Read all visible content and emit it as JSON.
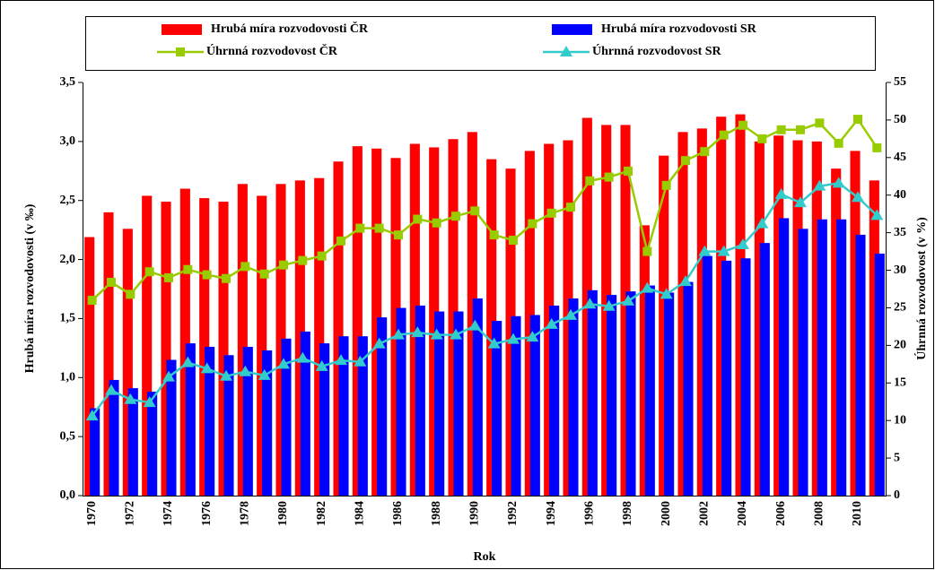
{
  "chart_data": {
    "type": "bar",
    "x_label": "Rok",
    "y_label": "Hrubá míra rozvodovosti (v ‰)",
    "y2_label": "Úhrnná rozvodovost (v %)",
    "categories": [
      "1970",
      null,
      "1972",
      null,
      "1974",
      null,
      "1976",
      null,
      "1978",
      null,
      "1980",
      null,
      "1982",
      null,
      "1984",
      null,
      "1986",
      null,
      "1988",
      null,
      "1990",
      null,
      "1992",
      null,
      "1994",
      null,
      "1996",
      null,
      "1998",
      null,
      "2000",
      null,
      "2002",
      null,
      "2004",
      null,
      "2006",
      null,
      "2008",
      null,
      "2010",
      null
    ],
    "ylim": [
      0,
      3.5
    ],
    "yticks": [
      {
        "value": 0,
        "label": "0,0"
      },
      {
        "value": 0.5,
        "label": "0,5"
      },
      {
        "value": 1,
        "label": "1,0"
      },
      {
        "value": 1.5,
        "label": "1,5"
      },
      {
        "value": 2,
        "label": "2,0"
      },
      {
        "value": 2.5,
        "label": "2,5"
      },
      {
        "value": 3,
        "label": "3,0"
      },
      {
        "value": 3.5,
        "label": "3,5"
      }
    ],
    "y2lim": [
      0,
      55
    ],
    "y2ticks": [
      0,
      5,
      10,
      15,
      20,
      25,
      30,
      35,
      40,
      45,
      50,
      55
    ],
    "grid": false,
    "series": [
      {
        "name": "Hrubá míra rozvodovosti ČR",
        "type": "bar",
        "color": "#ff0000",
        "values": [
          2.19,
          2.4,
          2.26,
          2.54,
          2.49,
          2.6,
          2.52,
          2.49,
          2.64,
          2.54,
          2.64,
          2.67,
          2.69,
          2.83,
          2.96,
          2.94,
          2.86,
          2.98,
          2.95,
          3.02,
          3.08,
          2.85,
          2.77,
          2.92,
          2.98,
          3.01,
          3.2,
          3.14,
          3.14,
          2.29,
          2.88,
          3.08,
          3.11,
          3.21,
          3.23,
          3.0,
          3.05,
          3.01,
          3.0,
          2.77,
          2.92,
          2.67
        ]
      },
      {
        "name": "Hrubá míra rozvodovosti SR",
        "type": "bar",
        "color": "#0000ff",
        "values": [
          0.74,
          0.98,
          0.91,
          0.88,
          1.15,
          1.29,
          1.26,
          1.19,
          1.26,
          1.23,
          1.33,
          1.39,
          1.29,
          1.35,
          1.35,
          1.51,
          1.59,
          1.61,
          1.56,
          1.56,
          1.67,
          1.48,
          1.52,
          1.53,
          1.61,
          1.67,
          1.74,
          1.7,
          1.73,
          1.78,
          1.72,
          1.81,
          2.03,
          1.99,
          2.01,
          2.14,
          2.35,
          2.26,
          2.34,
          2.34,
          2.21,
          2.05
        ]
      },
      {
        "name": "Úhrnná rozvodovost ČR",
        "type": "line",
        "axis": "y2",
        "marker": "square",
        "color": "#99cc00",
        "values": [
          26.0,
          28.4,
          26.8,
          29.8,
          29.0,
          30.1,
          29.4,
          28.9,
          30.5,
          29.5,
          30.7,
          31.3,
          31.9,
          33.9,
          35.6,
          35.6,
          34.7,
          36.8,
          36.3,
          37.2,
          37.9,
          34.7,
          34.0,
          36.2,
          37.6,
          38.4,
          41.9,
          42.4,
          43.2,
          32.5,
          41.3,
          44.6,
          45.8,
          48.0,
          49.3,
          47.5,
          48.7,
          48.7,
          49.6,
          46.9,
          50.1,
          46.3
        ]
      },
      {
        "name": "Úhrnná rozvodovost SR",
        "type": "line",
        "axis": "y2",
        "marker": "triangle",
        "color": "#33cccc",
        "values": [
          10.6,
          14.0,
          12.8,
          12.4,
          15.8,
          17.7,
          16.9,
          15.9,
          16.5,
          16.0,
          17.5,
          18.3,
          17.2,
          18.0,
          17.8,
          20.2,
          21.4,
          21.7,
          21.4,
          21.4,
          22.6,
          20.2,
          20.8,
          21.1,
          22.8,
          24.0,
          25.5,
          25.2,
          25.9,
          27.6,
          26.8,
          28.5,
          32.5,
          32.5,
          33.4,
          36.2,
          40.1,
          39.0,
          41.2,
          41.6,
          39.7,
          37.3
        ]
      }
    ]
  }
}
